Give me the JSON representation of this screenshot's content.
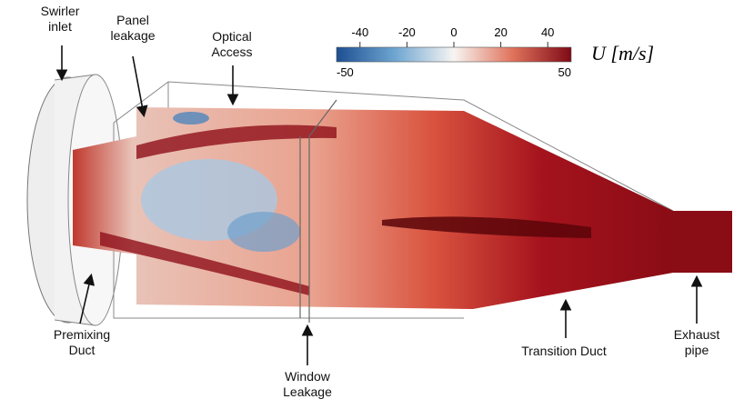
{
  "labels": {
    "swirler_inlet": "Swirler\ninlet",
    "panel_leakage": "Panel\nleakage",
    "optical_access": "Optical\nAccess",
    "premixing_duct": "Premixing\nDuct",
    "window_leakage": "Window\nLeakage",
    "transition_duct": "Transition Duct",
    "exhaust_pipe": "Exhaust\npipe"
  },
  "colorbar": {
    "label": "U [m/s]",
    "range": [
      -50,
      50
    ],
    "ticks": [
      -40,
      -20,
      0,
      20,
      40
    ]
  }
}
